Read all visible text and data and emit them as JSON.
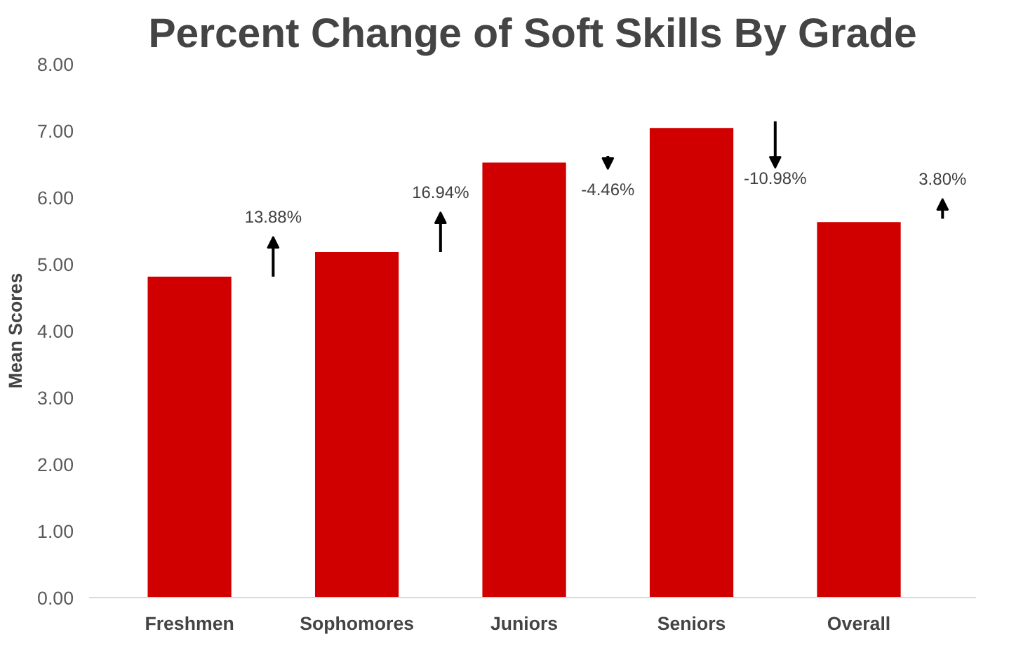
{
  "chart_data": {
    "type": "bar",
    "title": "Percent Change of Soft Skills By Grade",
    "ylabel": "Mean Scores",
    "categories": [
      "Freshmen",
      "Sophomores",
      "Juniors",
      "Seniors",
      "Overall"
    ],
    "values": [
      4.81,
      5.18,
      6.52,
      7.04,
      5.63
    ],
    "color": "#d00000",
    "ylim": [
      0,
      8
    ],
    "yticks": [
      {
        "value": 0,
        "label": "0.00"
      },
      {
        "value": 1,
        "label": "1.00"
      },
      {
        "value": 2,
        "label": "2.00"
      },
      {
        "value": 3,
        "label": "3.00"
      },
      {
        "value": 4,
        "label": "4.00"
      },
      {
        "value": 5,
        "label": "5.00"
      },
      {
        "value": 6,
        "label": "6.00"
      },
      {
        "value": 7,
        "label": "7.00"
      },
      {
        "value": 8,
        "label": "8.00"
      }
    ],
    "annotations": [
      "13.88%",
      "16.94%",
      "-4.46%",
      "-10.98%",
      "3.80%"
    ],
    "grid": false
  }
}
